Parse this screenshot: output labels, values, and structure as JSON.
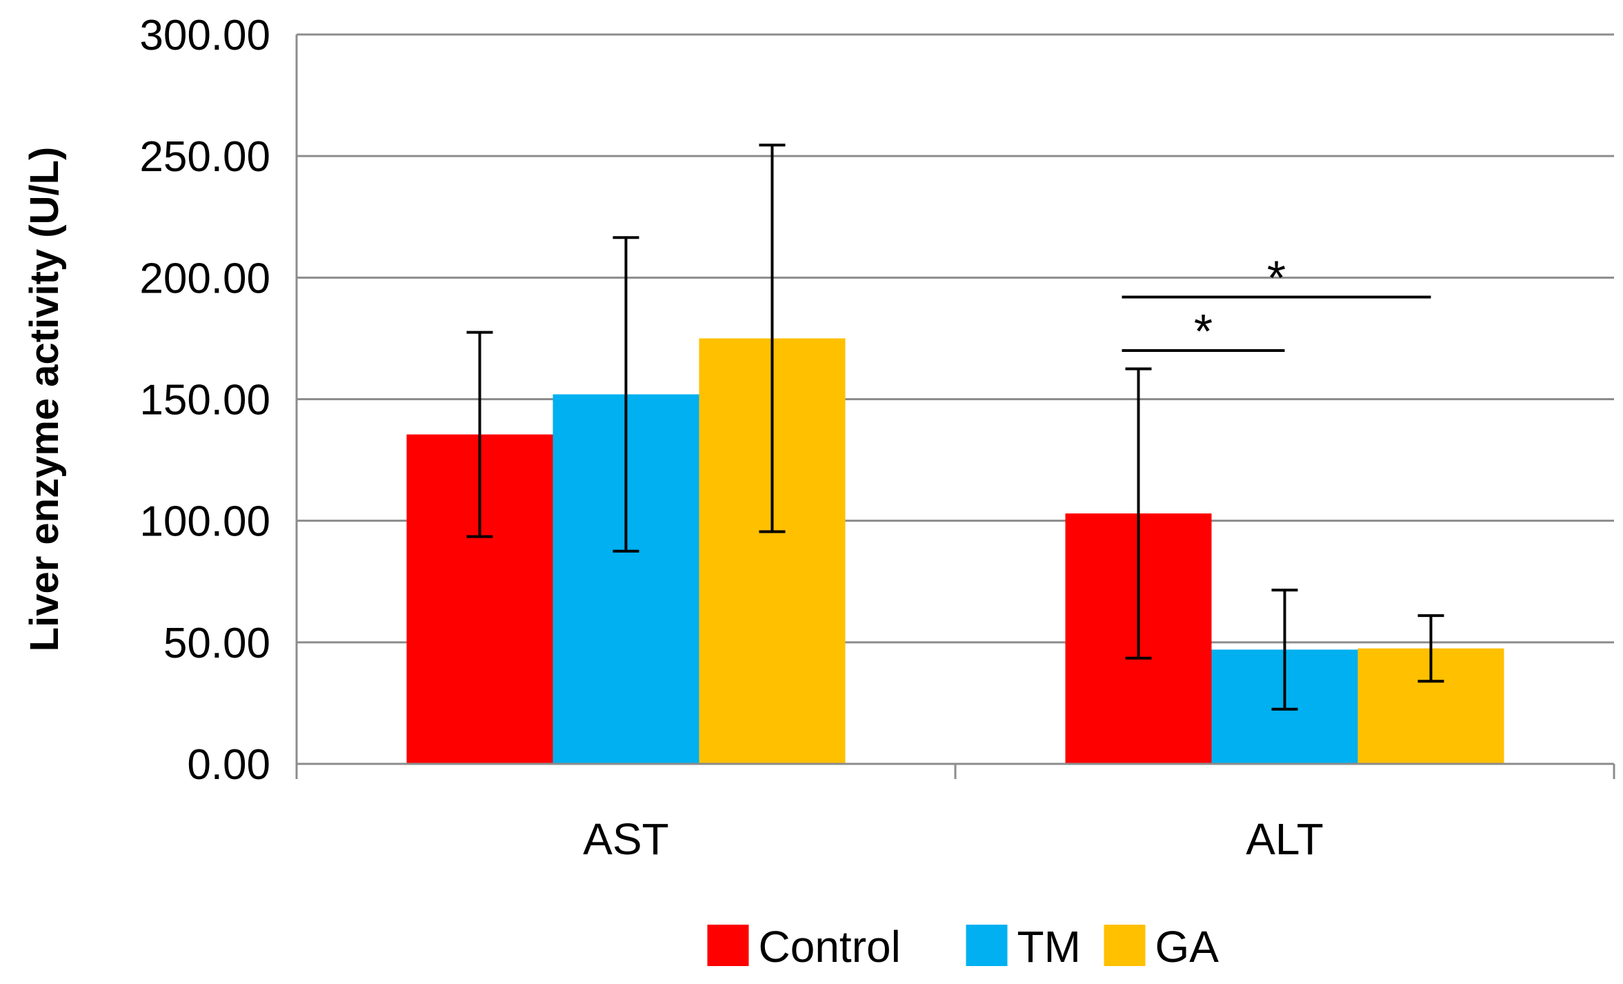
{
  "chart_data": {
    "type": "bar",
    "title": "",
    "xlabel": "",
    "ylabel": "Liver enzyme activity (U/L)",
    "ylim": [
      0,
      300
    ],
    "yticks": [
      "0.00",
      "50.00",
      "100.00",
      "150.00",
      "200.00",
      "250.00",
      "300.00"
    ],
    "grid": true,
    "legend_position": "bottom",
    "categories": [
      "AST",
      "ALT"
    ],
    "series": [
      {
        "name": "Control",
        "color": "#ff0000",
        "values": [
          135.5,
          103.0
        ],
        "error": [
          42.0,
          59.5
        ]
      },
      {
        "name": "TM",
        "color": "#00b0f0",
        "values": [
          152.0,
          47.0
        ],
        "error": [
          64.5,
          24.5
        ]
      },
      {
        "name": "GA",
        "color": "#ffc000",
        "values": [
          175.0,
          47.5
        ],
        "error": [
          79.5,
          13.5
        ]
      }
    ],
    "annotations": [
      {
        "text": "*",
        "category": "ALT",
        "from_series": "Control",
        "to_series": "TM",
        "y": 170
      },
      {
        "text": "*",
        "category": "ALT",
        "from_series": "Control",
        "to_series": "GA",
        "y": 192
      }
    ]
  }
}
